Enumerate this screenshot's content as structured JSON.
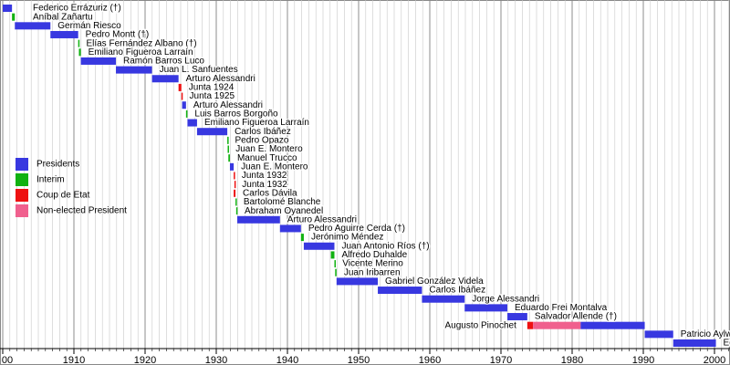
{
  "chart_data": {
    "type": "timeline",
    "xlim": [
      1900,
      2002
    ],
    "xticks": [
      {
        "value": 1900,
        "label": "00"
      },
      1910,
      1920,
      1930,
      1940,
      1950,
      1960,
      1970,
      1980,
      1990,
      2000
    ],
    "minor_grid_step": 1,
    "grid": true,
    "legend": "left",
    "series": [
      {
        "name": "Presidents",
        "color": "#3838e0"
      },
      {
        "name": "Interim",
        "color": "#11b211"
      },
      {
        "name": "Coup de Etat",
        "color": "#ee1111"
      },
      {
        "name": "Non-elected President",
        "color": "#f0608e"
      }
    ],
    "rows": [
      {
        "name": "Federico Errázuriz (†)",
        "segments": [
          {
            "kind": "Presidents",
            "start": 1896.7,
            "end": 1901.3
          }
        ]
      },
      {
        "name": "Aníbal Zañartu",
        "segments": [
          {
            "kind": "Interim",
            "start": 1901.3,
            "end": 1901.7
          }
        ]
      },
      {
        "name": "Germán Riesco",
        "segments": [
          {
            "kind": "Presidents",
            "start": 1901.7,
            "end": 1906.7
          }
        ]
      },
      {
        "name": "Pedro Montt (†)",
        "segments": [
          {
            "kind": "Presidents",
            "start": 1906.7,
            "end": 1910.6
          }
        ]
      },
      {
        "name": "Elías Fernández Albano (†)",
        "segments": [
          {
            "kind": "Interim",
            "start": 1910.6,
            "end": 1910.7
          }
        ]
      },
      {
        "name": "Emiliano Figueroa Larraín",
        "segments": [
          {
            "kind": "Interim",
            "start": 1910.7,
            "end": 1910.97
          }
        ]
      },
      {
        "name": "Ramón Barros Luco",
        "segments": [
          {
            "kind": "Presidents",
            "start": 1910.97,
            "end": 1915.9
          }
        ]
      },
      {
        "name": "Juan L. Sanfuentes",
        "segments": [
          {
            "kind": "Presidents",
            "start": 1915.9,
            "end": 1920.97
          }
        ]
      },
      {
        "name": "Arturo Alessandri",
        "segments": [
          {
            "kind": "Presidents",
            "start": 1920.97,
            "end": 1924.7
          }
        ]
      },
      {
        "name": "Junta 1924",
        "segments": [
          {
            "kind": "Coup de Etat",
            "start": 1924.7,
            "end": 1925.1
          }
        ]
      },
      {
        "name": "Junta 1925",
        "segments": [
          {
            "kind": "Coup de Etat",
            "start": 1925.1,
            "end": 1925.2
          }
        ]
      },
      {
        "name": "Arturo Alessandri",
        "segments": [
          {
            "kind": "Presidents",
            "start": 1925.2,
            "end": 1925.75
          }
        ]
      },
      {
        "name": "Luis Barros Borgoño",
        "segments": [
          {
            "kind": "Interim",
            "start": 1925.75,
            "end": 1925.95
          }
        ]
      },
      {
        "name": "Emiliano Figueroa Larraín",
        "segments": [
          {
            "kind": "Presidents",
            "start": 1925.95,
            "end": 1927.3
          }
        ]
      },
      {
        "name": "Carlos Ibáñez",
        "segments": [
          {
            "kind": "Presidents",
            "start": 1927.3,
            "end": 1931.55
          }
        ]
      },
      {
        "name": "Pedro Opazo",
        "segments": [
          {
            "kind": "Interim",
            "start": 1931.55,
            "end": 1931.6
          }
        ]
      },
      {
        "name": "Juan E. Montero",
        "segments": [
          {
            "kind": "Interim",
            "start": 1931.6,
            "end": 1931.7
          }
        ]
      },
      {
        "name": "Manuel Trucco",
        "segments": [
          {
            "kind": "Interim",
            "start": 1931.7,
            "end": 1931.92
          }
        ]
      },
      {
        "name": "Juan E. Montero",
        "segments": [
          {
            "kind": "Presidents",
            "start": 1931.92,
            "end": 1932.45
          }
        ]
      },
      {
        "name": "Junta 1932",
        "segments": [
          {
            "kind": "Coup de Etat",
            "start": 1932.45,
            "end": 1932.55
          }
        ]
      },
      {
        "name": "Junta 1932",
        "segments": [
          {
            "kind": "Coup de Etat",
            "start": 1932.55,
            "end": 1932.6
          }
        ]
      },
      {
        "name": "Carlos Dávila",
        "segments": [
          {
            "kind": "Coup de Etat",
            "start": 1932.45,
            "end": 1932.7
          }
        ]
      },
      {
        "name": "Bartolomé Blanche",
        "segments": [
          {
            "kind": "Interim",
            "start": 1932.7,
            "end": 1932.8
          }
        ]
      },
      {
        "name": "Abraham Oyanedel",
        "segments": [
          {
            "kind": "Interim",
            "start": 1932.8,
            "end": 1932.95
          }
        ]
      },
      {
        "name": "Arturo Alessandri",
        "segments": [
          {
            "kind": "Presidents",
            "start": 1932.95,
            "end": 1938.95
          }
        ]
      },
      {
        "name": "Pedro Aguirre Cerda (†)",
        "segments": [
          {
            "kind": "Presidents",
            "start": 1938.95,
            "end": 1941.9
          }
        ]
      },
      {
        "name": "Jerónimo Méndez",
        "segments": [
          {
            "kind": "Interim",
            "start": 1941.9,
            "end": 1942.3
          }
        ]
      },
      {
        "name": "Juan Antonio Ríos (†)",
        "segments": [
          {
            "kind": "Presidents",
            "start": 1942.3,
            "end": 1946.6
          }
        ]
      },
      {
        "name": "Alfredo Duhalde",
        "segments": [
          {
            "kind": "Interim",
            "start": 1946.1,
            "end": 1946.6
          }
        ]
      },
      {
        "name": "Vicente Merino",
        "segments": [
          {
            "kind": "Interim",
            "start": 1946.6,
            "end": 1946.7
          }
        ]
      },
      {
        "name": "Juan Iribarren",
        "segments": [
          {
            "kind": "Interim",
            "start": 1946.7,
            "end": 1946.9
          }
        ]
      },
      {
        "name": "Gabriel González Videla",
        "segments": [
          {
            "kind": "Presidents",
            "start": 1946.9,
            "end": 1952.7
          }
        ]
      },
      {
        "name": "Carlos Ibáñez",
        "segments": [
          {
            "kind": "Presidents",
            "start": 1952.7,
            "end": 1958.9
          }
        ]
      },
      {
        "name": "Jorge Alessandri",
        "segments": [
          {
            "kind": "Presidents",
            "start": 1958.9,
            "end": 1964.9
          }
        ]
      },
      {
        "name": "Eduardo Frei Montalva",
        "segments": [
          {
            "kind": "Presidents",
            "start": 1964.9,
            "end": 1970.9
          }
        ]
      },
      {
        "name": "Salvador Allende (†)",
        "segments": [
          {
            "kind": "Presidents",
            "start": 1970.9,
            "end": 1973.7
          }
        ]
      },
      {
        "name": "Augusto Pinochet",
        "segments": [
          {
            "kind": "Coup de Etat",
            "start": 1973.7,
            "end": 1974.5
          },
          {
            "kind": "Non-elected President",
            "start": 1974.5,
            "end": 1981.2
          },
          {
            "kind": "Presidents",
            "start": 1981.2,
            "end": 1990.2
          }
        ]
      },
      {
        "name": "Patricio Aylwin",
        "segments": [
          {
            "kind": "Presidents",
            "start": 1990.2,
            "end": 1994.2
          }
        ]
      },
      {
        "name": "Eduardo Frei Ruiz-Tagle",
        "segments": [
          {
            "kind": "Presidents",
            "start": 1994.2,
            "end": 2000.2
          }
        ]
      }
    ]
  }
}
